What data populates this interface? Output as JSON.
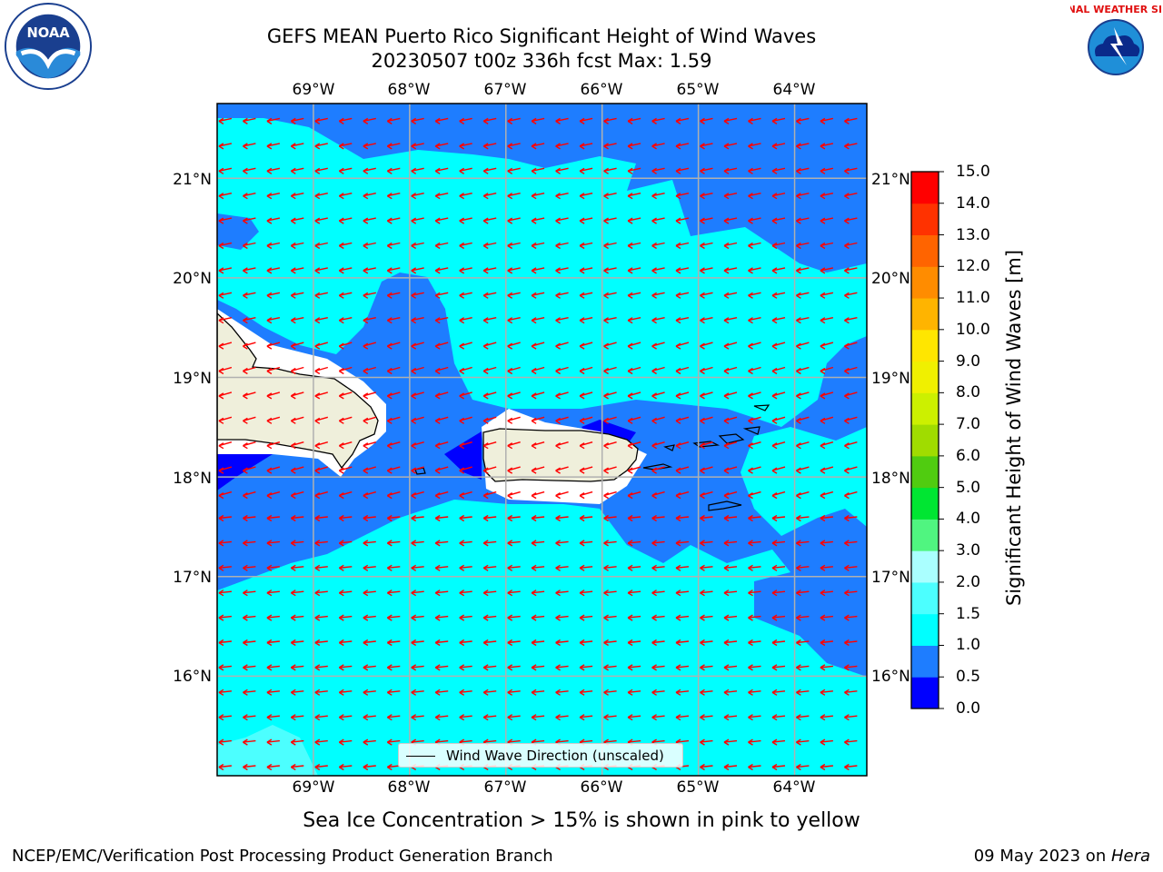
{
  "title_line1": "GEFS MEAN Puerto Rico Significant Height of Wind Waves",
  "title_line2": "20230507 t00z 336h fcst   Max: 1.59",
  "logos": [
    "noaa-logo",
    "nws-logo"
  ],
  "logo_text": {
    "noaa": "NOAA",
    "nws": "NATIONAL WEATHER SERVICE"
  },
  "map": {
    "lon_labels": [
      "69°W",
      "68°W",
      "67°W",
      "66°W",
      "65°W",
      "64°W"
    ],
    "lat_labels": [
      "21°N",
      "20°N",
      "19°N",
      "18°N",
      "17°N",
      "16°N"
    ],
    "lon_range": [
      -70.0,
      -63.25
    ],
    "lat_range": [
      15.0,
      21.75
    ],
    "grid": true,
    "land_color": "#efefdb",
    "arrow_color": "#ff0000",
    "features": [
      "Hispaniola",
      "Puerto Rico",
      "Virgin Islands",
      "Mona Island"
    ]
  },
  "legend": {
    "label": "Wind Wave Direction (unscaled)",
    "placement": "lower-center"
  },
  "colorbar": {
    "label": "Significant Height of Wind Waves [m]",
    "ticks": [
      "0.0",
      "0.5",
      "1.0",
      "1.5",
      "2.0",
      "3.0",
      "4.0",
      "5.0",
      "6.0",
      "7.0",
      "8.0",
      "9.0",
      "10.0",
      "11.0",
      "12.0",
      "13.0",
      "14.0",
      "15.0"
    ],
    "colors": [
      "#0000ff",
      "#1e7dff",
      "#00ffff",
      "#4cffff",
      "#aaffff",
      "#50f580",
      "#00e632",
      "#50cc10",
      "#a0dc00",
      "#ccf000",
      "#f0f000",
      "#ffe600",
      "#ffb400",
      "#ff8c00",
      "#ff6400",
      "#ff3200",
      "#ff0000"
    ]
  },
  "footer_note": "Sea Ice Concentration > 15% is shown in pink to yellow",
  "footer_left": "NCEP/EMC/Verification Post Processing Product Generation Branch",
  "footer_right_prefix": "09 May 2023 on ",
  "footer_right_host": "Hera"
}
